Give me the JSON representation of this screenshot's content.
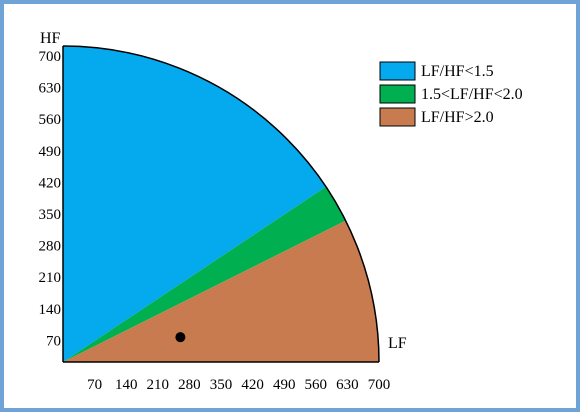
{
  "chart_data": {
    "type": "scatter",
    "xlabel": "LF",
    "ylabel": "HF",
    "xlim": [
      0,
      700
    ],
    "ylim": [
      0,
      700
    ],
    "x_ticks": [
      70,
      140,
      210,
      280,
      350,
      420,
      490,
      560,
      630,
      700
    ],
    "y_ticks": [
      70,
      140,
      210,
      280,
      350,
      420,
      490,
      560,
      630,
      700
    ],
    "boundary_radius": 700,
    "regions": [
      {
        "label": "LF/HF<1.5",
        "ratio_min": null,
        "ratio_max": 1.5,
        "color": "#05a9ee"
      },
      {
        "label": "1.5<LF/HF<2.0",
        "ratio_min": 1.5,
        "ratio_max": 2.0,
        "color": "#00b050"
      },
      {
        "label": "LF/HF>2.0",
        "ratio_min": 2.0,
        "ratio_max": null,
        "color": "#c77b4e"
      }
    ],
    "series": [
      {
        "points": [
          {
            "x": 260,
            "y": 55
          }
        ],
        "color": "#000000"
      }
    ],
    "legend_position": "top-right",
    "grid": false
  }
}
